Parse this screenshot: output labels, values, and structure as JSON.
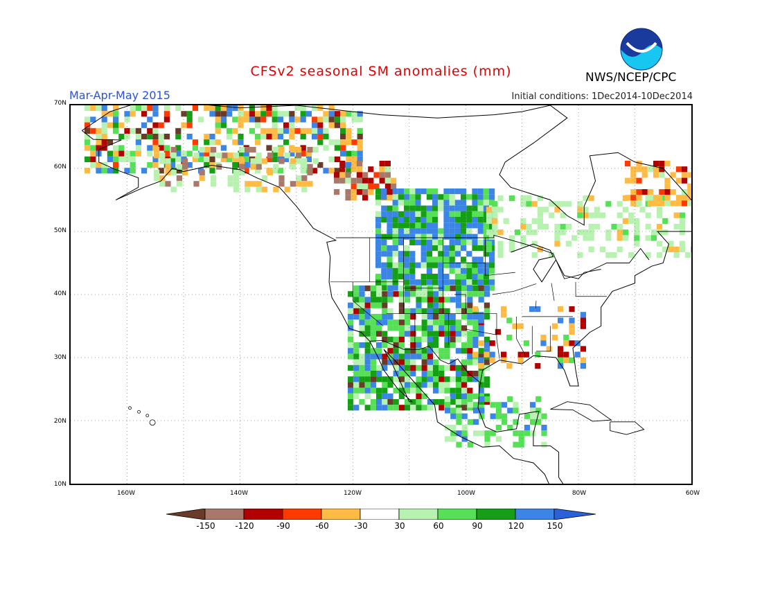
{
  "title": "CFSv2 seasonal SM anomalies (mm)",
  "period": "Mar-Apr-May 2015",
  "initial_conditions": "Initial conditions: 1Dec2014-10Dec2014",
  "agency": "NWS/NCEP/CPC",
  "logo_text": "NOAA",
  "lat_labels": [
    "70N",
    "60N",
    "50N",
    "40N",
    "30N",
    "20N",
    "10N"
  ],
  "lon_labels": [
    "160W",
    "140W",
    "120W",
    "100W",
    "80W",
    "60W"
  ],
  "colorbar": {
    "labels": [
      "-150",
      "-120",
      "-90",
      "-60",
      "-30",
      "30",
      "60",
      "90",
      "120",
      "150"
    ],
    "colors": [
      "#6b3b2a",
      "#a8786a",
      "#b00000",
      "#ff3a00",
      "#ffbb44",
      "#ffffff",
      "#b8f2b0",
      "#55e055",
      "#159f15",
      "#3a85e6",
      "#2a60d8"
    ]
  },
  "map_extent": {
    "lon_min": -170,
    "lon_max": -60,
    "lat_min": 10,
    "lat_max": 70
  }
}
